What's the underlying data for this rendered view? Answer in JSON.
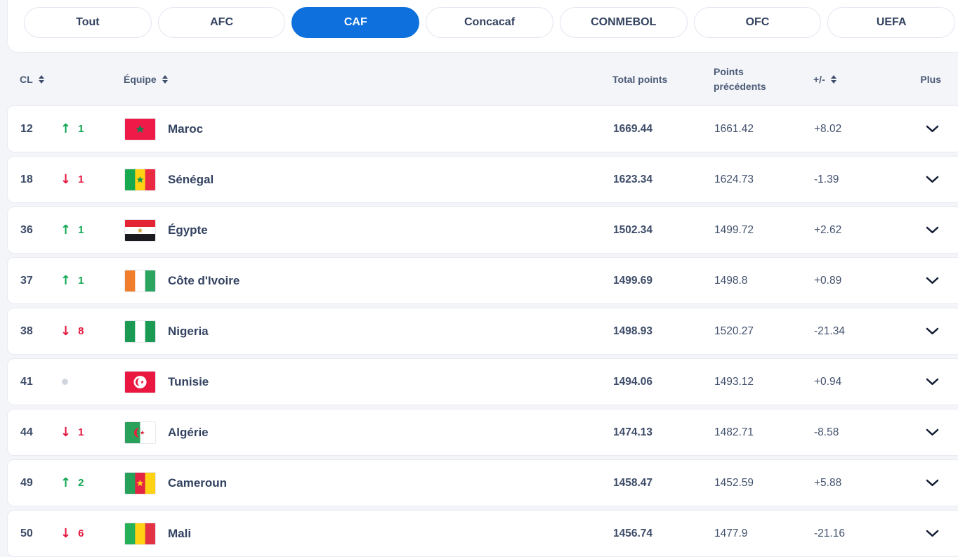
{
  "tabs": {
    "items": [
      {
        "label": "Tout",
        "active": false
      },
      {
        "label": "AFC",
        "active": false
      },
      {
        "label": "CAF",
        "active": true
      },
      {
        "label": "Concacaf",
        "active": false
      },
      {
        "label": "CONMEBOL",
        "active": false
      },
      {
        "label": "OFC",
        "active": false
      },
      {
        "label": "UEFA",
        "active": false
      }
    ]
  },
  "colors": {
    "active_tab": "#0d70dc",
    "positive": "#0fa74f",
    "negative": "#e4173e",
    "neutral_dot": "#d2d6df"
  },
  "table": {
    "headers": {
      "rank": "CL",
      "team": "Équipe",
      "total": "Total points",
      "previous": "Points précédents",
      "diff": "+/-",
      "more": "Plus"
    },
    "rows": [
      {
        "rank": "12",
        "move_dir": "up",
        "move": "1",
        "team": "Maroc",
        "total": "1669.44",
        "previous": "1661.42",
        "diff": "+8.02",
        "flag": {
          "type": "solid",
          "colors": [
            "#f01a48"
          ],
          "emblem": {
            "kind": "star",
            "color": "#1d7a4f",
            "r": 7
          }
        }
      },
      {
        "rank": "18",
        "move_dir": "down",
        "move": "1",
        "team": "Sénégal",
        "total": "1623.34",
        "previous": "1624.73",
        "diff": "-1.39",
        "flag": {
          "type": "v",
          "colors": [
            "#16a94e",
            "#ffd214",
            "#ea2a43"
          ],
          "emblem": {
            "kind": "star",
            "color": "#13954e",
            "r": 5.5
          }
        }
      },
      {
        "rank": "36",
        "move_dir": "up",
        "move": "1",
        "team": "Égypte",
        "total": "1502.34",
        "previous": "1499.72",
        "diff": "+2.62",
        "flag": {
          "type": "h",
          "colors": [
            "#e32432",
            "#ffffff",
            "#1b1b1f"
          ],
          "emblem": {
            "kind": "star",
            "color": "#d0a33c",
            "r": 4.5
          }
        }
      },
      {
        "rank": "37",
        "move_dir": "up",
        "move": "1",
        "team": "Côte d'Ivoire",
        "total": "1499.69",
        "previous": "1498.8",
        "diff": "+0.89",
        "flag": {
          "type": "v",
          "colors": [
            "#f07e2c",
            "#ffffff",
            "#2ba45f"
          ]
        }
      },
      {
        "rank": "38",
        "move_dir": "down",
        "move": "8",
        "team": "Nigeria",
        "total": "1498.93",
        "previous": "1520.27",
        "diff": "-21.34",
        "flag": {
          "type": "v",
          "colors": [
            "#1a9a52",
            "#ffffff",
            "#1a9a52"
          ]
        }
      },
      {
        "rank": "41",
        "move_dir": "none",
        "move": "",
        "team": "Tunisie",
        "total": "1494.06",
        "previous": "1493.12",
        "diff": "+0.94",
        "flag": {
          "type": "solid",
          "colors": [
            "#ea1840"
          ],
          "emblem": {
            "kind": "disc-crescent-star",
            "disc": "#ffffff",
            "color": "#ea1840",
            "R": 9.5
          }
        }
      },
      {
        "rank": "44",
        "move_dir": "down",
        "move": "1",
        "team": "Algérie",
        "total": "1474.13",
        "previous": "1482.71",
        "diff": "-8.58",
        "flag": {
          "type": "v2",
          "colors": [
            "#2aa15b",
            "#ffffff"
          ],
          "emblem": {
            "kind": "crescent-star",
            "color": "#e0263c",
            "R": 7.5
          }
        }
      },
      {
        "rank": "49",
        "move_dir": "up",
        "move": "2",
        "team": "Cameroun",
        "total": "1458.47",
        "previous": "1452.59",
        "diff": "+5.88",
        "flag": {
          "type": "v",
          "colors": [
            "#27a05a",
            "#e32443",
            "#ffd214"
          ],
          "emblem": {
            "kind": "star",
            "color": "#ffd214",
            "r": 5.5
          }
        }
      },
      {
        "rank": "50",
        "move_dir": "down",
        "move": "6",
        "team": "Mali",
        "total": "1456.74",
        "previous": "1477.9",
        "diff": "-21.16",
        "flag": {
          "type": "v",
          "colors": [
            "#25b158",
            "#ffd214",
            "#e23243"
          ]
        }
      }
    ]
  }
}
